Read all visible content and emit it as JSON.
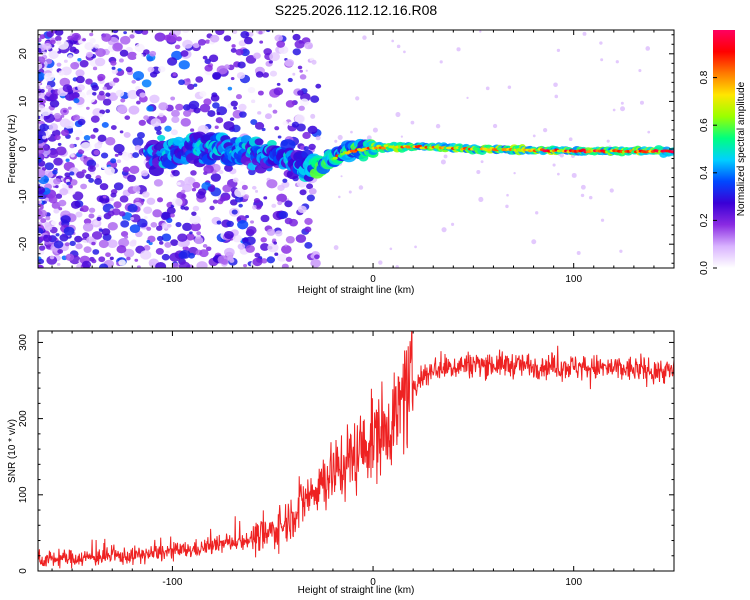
{
  "title": "S225.2026.112.12.16.R08",
  "colors": {
    "spectrum_low": "#e8d8ff",
    "spectrum_mid": "#6a1fe0",
    "snr_line": "#ee2222",
    "frame": "#000000"
  },
  "chart_data": [
    {
      "type": "heatmap",
      "name": "spectrogram",
      "title": "S225.2026.112.12.16.R08",
      "xlabel": "Height of straight line (km)",
      "ylabel": "Frequency (Hz)",
      "xlim": [
        -167,
        150
      ],
      "ylim": [
        -25,
        25
      ],
      "xticks": [
        -100,
        0,
        100
      ],
      "xtick_labels": [
        "-100",
        "0",
        "100"
      ],
      "yticks": [
        -20,
        -10,
        0,
        10,
        20
      ],
      "ytick_labels": [
        "-20",
        "-10",
        "0",
        "10",
        "20"
      ],
      "colorbar": {
        "label": "Normalized spectral amplitude",
        "range": [
          0,
          1
        ],
        "ticks": [
          0.0,
          0.2,
          0.4,
          0.6,
          0.8
        ],
        "tick_labels": [
          "0.0",
          "0.2",
          "0.4",
          "0.6",
          "0.8"
        ],
        "colormap": [
          "#ffffff",
          "#d9b3ff",
          "#8a2be2",
          "#3a00d6",
          "#0048ff",
          "#00d0ff",
          "#00ff7f",
          "#9aff00",
          "#ffe600",
          "#ff7a00",
          "#ff0000",
          "#ff0060"
        ]
      },
      "ridge": {
        "x": [
          -100,
          -80,
          -60,
          -45,
          -35,
          -25,
          -15,
          -5,
          0,
          20,
          50,
          100,
          150
        ],
        "freq": [
          -1,
          1,
          -1,
          -2,
          -4,
          -3,
          -1,
          0,
          0.3,
          0.5,
          0,
          -0.4,
          -0.5
        ]
      }
    },
    {
      "type": "line",
      "name": "snr",
      "xlabel": "Height of straight line (km)",
      "ylabel": "SNR (10 * v/v)",
      "xlim": [
        -167,
        150
      ],
      "ylim": [
        0,
        315
      ],
      "xticks": [
        -100,
        0,
        100
      ],
      "xtick_labels": [
        "-100",
        "0",
        "100"
      ],
      "yticks": [
        0,
        100,
        200,
        300
      ],
      "ytick_labels": [
        "0",
        "100",
        "200",
        "300"
      ],
      "trend": {
        "x": [
          -167,
          -120,
          -90,
          -70,
          -55,
          -45,
          -35,
          -25,
          -15,
          -5,
          0,
          10,
          20,
          30,
          50,
          100,
          150
        ],
        "y": [
          15,
          20,
          28,
          38,
          45,
          60,
          90,
          120,
          140,
          160,
          175,
          200,
          245,
          265,
          272,
          268,
          262
        ]
      }
    }
  ]
}
